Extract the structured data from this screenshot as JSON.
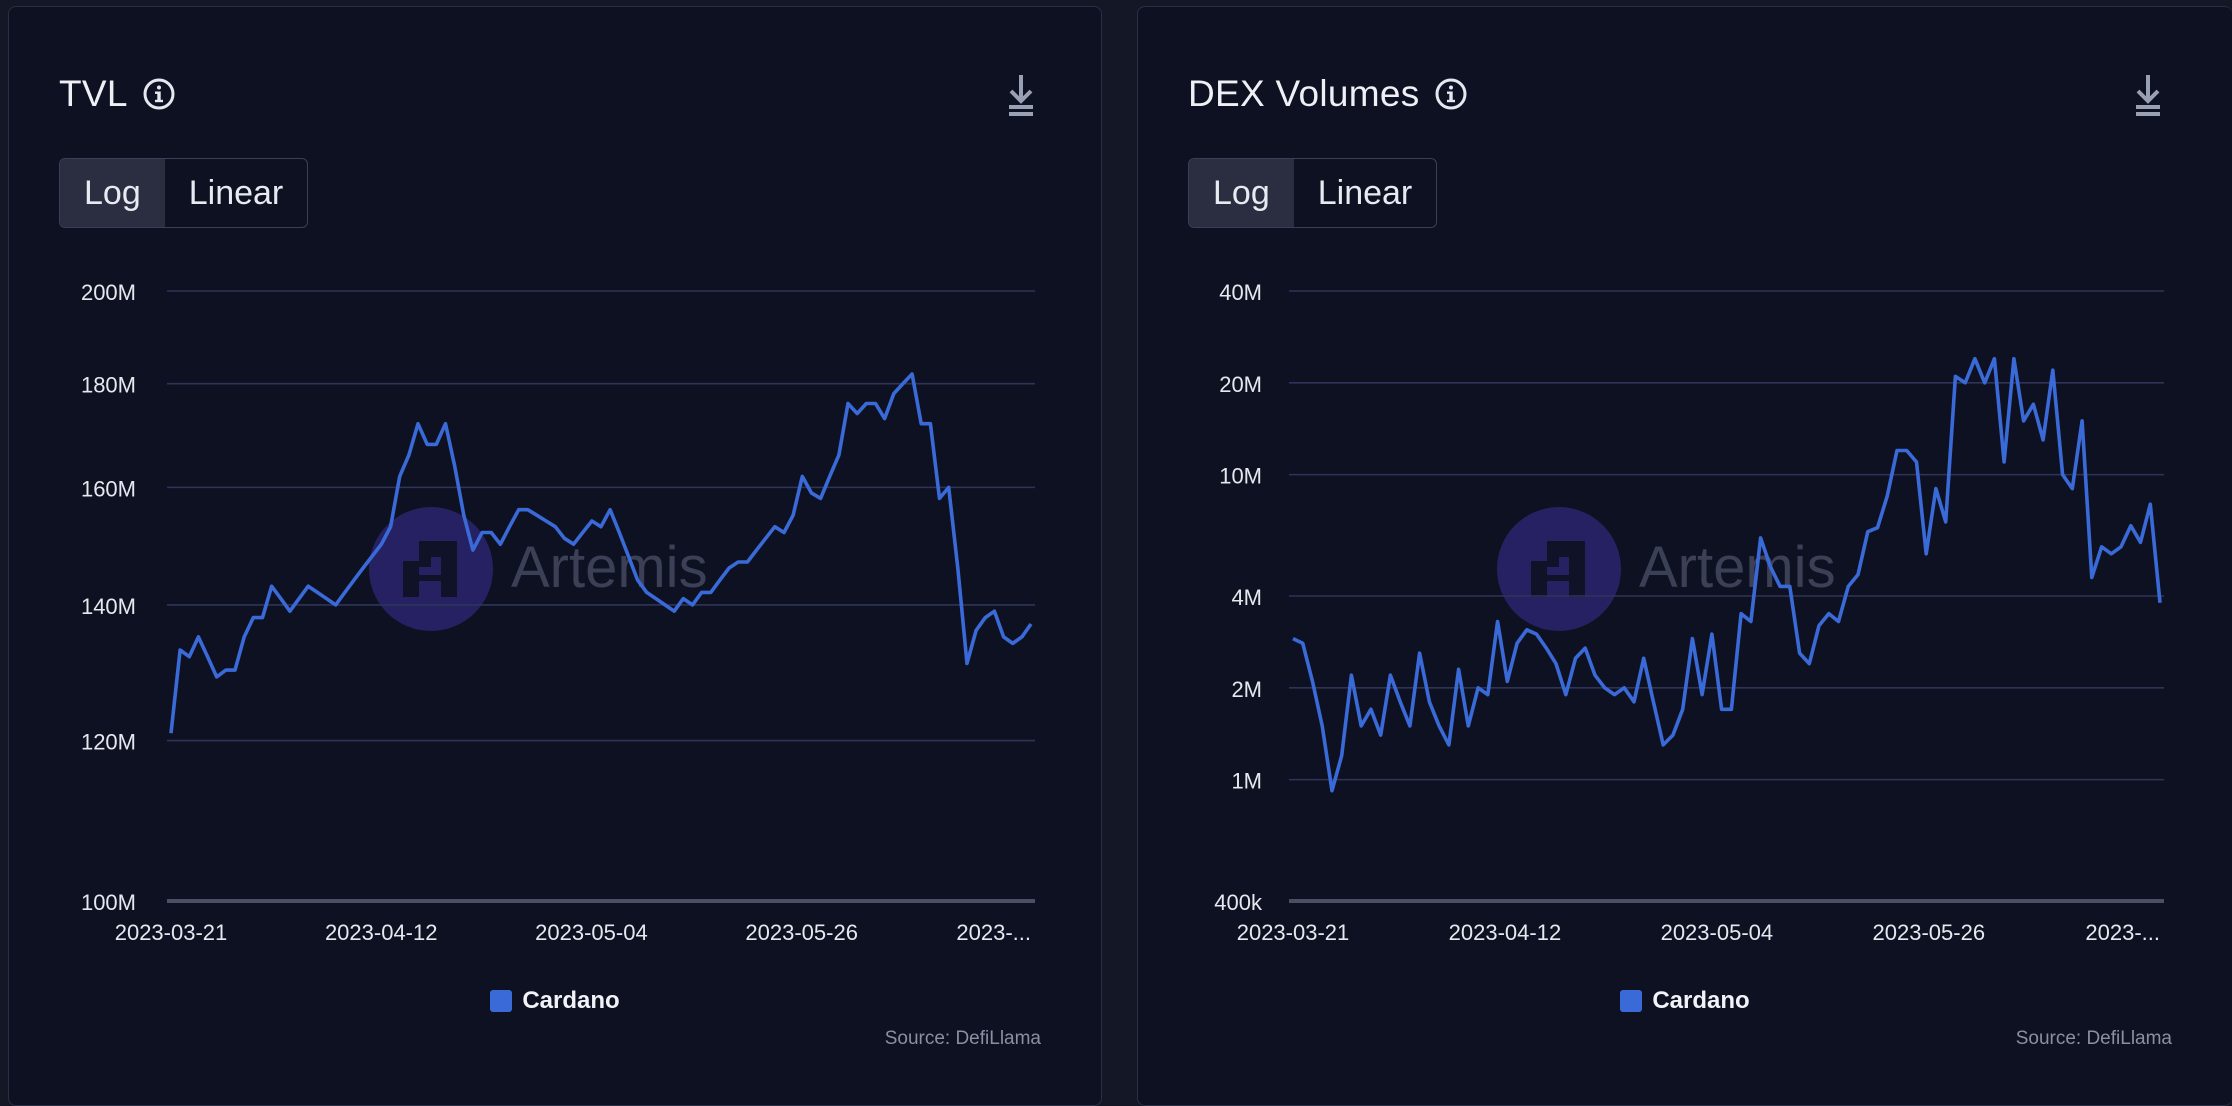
{
  "colors": {
    "series": "#3a6ad8",
    "grid": "#2e3458",
    "baseline": "#4a4f66",
    "watermark": "#3a2f99"
  },
  "watermark_text": "Artemis",
  "tvl": {
    "title": "TVL",
    "toggle": [
      "Log",
      "Linear"
    ],
    "legend": "Cardano",
    "source": "Source: DefiLlama"
  },
  "dex": {
    "title": "DEX Volumes",
    "toggle": [
      "Log",
      "Linear"
    ],
    "legend": "Cardano",
    "source": "Source: DefiLlama"
  },
  "chart_data": [
    {
      "type": "line",
      "title": "TVL",
      "scale": "log",
      "ylim": [
        100000000,
        200000000
      ],
      "yticks": [
        {
          "value": 200000000,
          "label": "200M"
        },
        {
          "value": 180000000,
          "label": "180M"
        },
        {
          "value": 160000000,
          "label": "160M"
        },
        {
          "value": 140000000,
          "label": "140M"
        },
        {
          "value": 120000000,
          "label": "120M"
        },
        {
          "value": 100000000,
          "label": "100M"
        }
      ],
      "x_range": [
        "2023-03-21",
        "2023-06-19"
      ],
      "xticks": [
        {
          "date": "2023-03-21",
          "label": "2023-03-21"
        },
        {
          "date": "2023-04-12",
          "label": "2023-04-12"
        },
        {
          "date": "2023-05-04",
          "label": "2023-05-04"
        },
        {
          "date": "2023-05-26",
          "label": "2023-05-26"
        },
        {
          "date": "2023-06-17",
          "label": "2023-..."
        }
      ],
      "legend": "top-none, bottom-center",
      "series": [
        {
          "name": "Cardano",
          "start_date": "2023-03-21",
          "values": [
            121,
            133,
            132,
            135,
            132,
            129,
            130,
            130,
            135,
            138,
            138,
            143,
            141,
            139,
            141,
            143,
            142,
            141,
            140,
            142,
            144,
            146,
            148,
            150,
            153,
            162,
            166,
            172,
            168,
            168,
            172,
            164,
            155,
            149,
            152,
            152,
            150,
            153,
            156,
            156,
            155,
            154,
            153,
            151,
            150,
            152,
            154,
            153,
            156,
            152,
            148,
            144,
            142,
            141,
            140,
            139,
            141,
            140,
            142,
            142,
            144,
            146,
            147,
            147,
            149,
            151,
            153,
            152,
            155,
            162,
            159,
            158,
            162,
            166,
            176,
            174,
            176,
            176,
            173,
            178,
            180,
            182,
            172,
            172,
            158,
            160,
            146,
            131,
            136,
            138,
            139,
            135,
            134,
            135,
            137
          ]
        }
      ]
    },
    {
      "type": "line",
      "title": "DEX Volumes",
      "scale": "log",
      "ylim": [
        400000,
        40000000
      ],
      "yticks": [
        {
          "value": 40000000,
          "label": "40M"
        },
        {
          "value": 20000000,
          "label": "20M"
        },
        {
          "value": 10000000,
          "label": "10M"
        },
        {
          "value": 4000000,
          "label": "4M"
        },
        {
          "value": 2000000,
          "label": "2M"
        },
        {
          "value": 1000000,
          "label": "1M"
        },
        {
          "value": 400000,
          "label": "400k"
        }
      ],
      "x_range": [
        "2023-03-21",
        "2023-06-19"
      ],
      "xticks": [
        {
          "date": "2023-03-21",
          "label": "2023-03-21"
        },
        {
          "date": "2023-04-12",
          "label": "2023-04-12"
        },
        {
          "date": "2023-05-04",
          "label": "2023-05-04"
        },
        {
          "date": "2023-05-26",
          "label": "2023-05-26"
        },
        {
          "date": "2023-06-17",
          "label": "2023-..."
        }
      ],
      "series": [
        {
          "name": "Cardano",
          "start_date": "2023-03-21",
          "values": [
            2.9,
            2.8,
            2.1,
            1.5,
            0.92,
            1.2,
            2.2,
            1.5,
            1.7,
            1.4,
            2.2,
            1.8,
            1.5,
            2.6,
            1.8,
            1.5,
            1.3,
            2.3,
            1.5,
            2.0,
            1.9,
            3.3,
            2.1,
            2.8,
            3.1,
            3.0,
            2.7,
            2.4,
            1.9,
            2.5,
            2.7,
            2.2,
            2.0,
            1.9,
            2.0,
            1.8,
            2.5,
            1.8,
            1.3,
            1.4,
            1.7,
            2.9,
            1.9,
            3.0,
            1.7,
            1.7,
            3.5,
            3.3,
            6.2,
            5.0,
            4.3,
            4.3,
            2.6,
            2.4,
            3.2,
            3.5,
            3.3,
            4.3,
            4.7,
            6.5,
            6.7,
            8.5,
            12.0,
            12.0,
            11.0,
            5.5,
            9.0,
            7.0,
            21.0,
            20.0,
            24.0,
            20.0,
            24.0,
            11.0,
            24.0,
            15.0,
            17.0,
            13.0,
            22.0,
            10.0,
            9.0,
            15.0,
            4.6,
            5.8,
            5.5,
            5.8,
            6.8,
            6.0,
            8.0,
            3.8
          ]
        }
      ]
    }
  ]
}
